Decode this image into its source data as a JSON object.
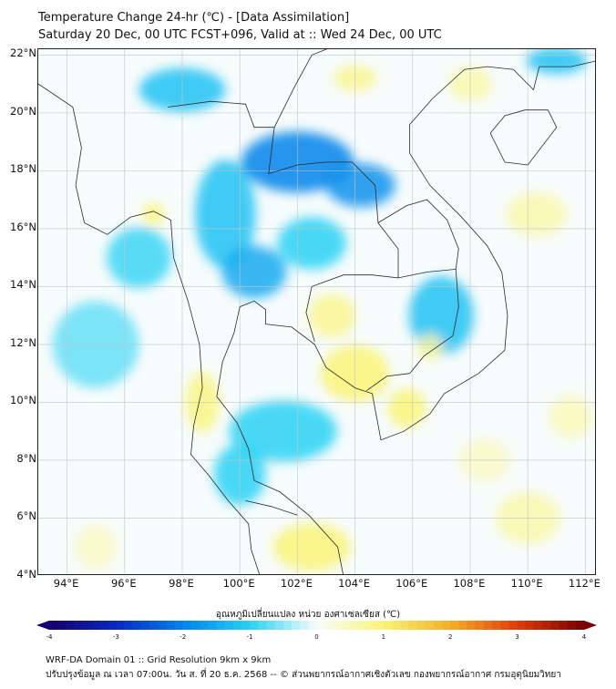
{
  "title": {
    "line1": "Temperature Change 24-hr (℃) - [Data Assimilation]",
    "line2": "Saturday 20 Dec, 00 UTC FCST+096, Valid at :: Wed 24 Dec, 00 UTC"
  },
  "map": {
    "lat_range": [
      4,
      22.2
    ],
    "lon_range": [
      93,
      112.4
    ],
    "lat_ticks": [
      "22°N",
      "20°N",
      "18°N",
      "16°N",
      "14°N",
      "12°N",
      "10°N",
      "8°N",
      "6°N",
      "4°N"
    ],
    "lat_values": [
      22,
      20,
      18,
      16,
      14,
      12,
      10,
      8,
      6,
      4
    ],
    "lon_ticks": [
      "94°E",
      "96°E",
      "98°E",
      "100°E",
      "102°E",
      "104°E",
      "106°E",
      "108°E",
      "110°E",
      "112°E"
    ],
    "lon_values": [
      94,
      96,
      98,
      100,
      102,
      104,
      106,
      108,
      110,
      112
    ],
    "anomalies": [
      {
        "lon": 102.0,
        "lat": 18.3,
        "value": -2.0,
        "sx": 2.6,
        "sy": 1.4
      },
      {
        "lon": 104.2,
        "lat": 17.5,
        "value": -1.8,
        "sx": 1.6,
        "sy": 1.0
      },
      {
        "lon": 99.5,
        "lat": 16.5,
        "value": -1.2,
        "sx": 1.4,
        "sy": 2.5
      },
      {
        "lon": 100.5,
        "lat": 14.5,
        "value": -1.5,
        "sx": 1.5,
        "sy": 1.2
      },
      {
        "lon": 102.5,
        "lat": 15.5,
        "value": -1.0,
        "sx": 1.6,
        "sy": 1.2
      },
      {
        "lon": 98.0,
        "lat": 20.8,
        "value": -1.2,
        "sx": 2.0,
        "sy": 1.0
      },
      {
        "lon": 107.0,
        "lat": 13.0,
        "value": -1.2,
        "sx": 1.5,
        "sy": 1.8
      },
      {
        "lon": 101.5,
        "lat": 9.0,
        "value": -1.0,
        "sx": 2.5,
        "sy": 1.4
      },
      {
        "lon": 100.0,
        "lat": 7.5,
        "value": -1.0,
        "sx": 1.2,
        "sy": 1.4
      },
      {
        "lon": 95.0,
        "lat": 12.0,
        "value": -0.7,
        "sx": 2.0,
        "sy": 2.0
      },
      {
        "lon": 96.5,
        "lat": 15.0,
        "value": -0.9,
        "sx": 1.5,
        "sy": 1.4
      },
      {
        "lon": 111.0,
        "lat": 21.8,
        "value": -1.2,
        "sx": 1.4,
        "sy": 0.6
      },
      {
        "lon": 104.0,
        "lat": 11.0,
        "value": 1.0,
        "sx": 1.6,
        "sy": 1.3
      },
      {
        "lon": 105.8,
        "lat": 9.8,
        "value": 1.0,
        "sx": 0.9,
        "sy": 0.9
      },
      {
        "lon": 103.2,
        "lat": 13.0,
        "value": 0.8,
        "sx": 1.1,
        "sy": 1.0
      },
      {
        "lon": 106.6,
        "lat": 11.9,
        "value": 0.7,
        "sx": 0.6,
        "sy": 0.6
      },
      {
        "lon": 102.5,
        "lat": 5.0,
        "value": 1.0,
        "sx": 1.8,
        "sy": 1.1
      },
      {
        "lon": 98.7,
        "lat": 10.0,
        "value": 0.9,
        "sx": 0.8,
        "sy": 1.4
      },
      {
        "lon": 97.0,
        "lat": 16.5,
        "value": 1.0,
        "sx": 0.5,
        "sy": 0.5
      },
      {
        "lon": 104.0,
        "lat": 21.2,
        "value": 0.8,
        "sx": 1.0,
        "sy": 0.6
      },
      {
        "lon": 108.0,
        "lat": 21.0,
        "value": 0.6,
        "sx": 1.0,
        "sy": 0.8
      },
      {
        "lon": 110.3,
        "lat": 16.5,
        "value": 0.6,
        "sx": 1.4,
        "sy": 1.0
      },
      {
        "lon": 110.0,
        "lat": 6.0,
        "value": 0.6,
        "sx": 1.5,
        "sy": 1.2
      },
      {
        "lon": 111.5,
        "lat": 9.5,
        "value": 0.5,
        "sx": 1.0,
        "sy": 1.0
      },
      {
        "lon": 108.5,
        "lat": 8.0,
        "value": 0.4,
        "sx": 1.2,
        "sy": 1.0
      },
      {
        "lon": 95.0,
        "lat": 5.0,
        "value": 0.4,
        "sx": 1.0,
        "sy": 1.0
      }
    ]
  },
  "colorbar": {
    "title": "อุณหภูมิเปลี่ยนแปลง หน่วย องศาเซลเซียส (℃)",
    "min": -4,
    "max": 4,
    "ticks": [
      "-4",
      "-3",
      "-2",
      "-1",
      "0",
      "1",
      "2",
      "3",
      "4"
    ],
    "tick_values": [
      -4,
      -3,
      -2,
      -1,
      0,
      1,
      2,
      3,
      4
    ]
  },
  "footer": {
    "line1": "WRF-DA Domain 01 :: Grid Resolution 9km x 9km",
    "line2": "ปรับปรุงข้อมูล ณ เวลา 07:00น. วัน ส. ที่ 20 ธ.ค. 2568 -- © ส่วนพยากรณ์อากาศเชิงตัวเลข กองพยากรณ์อากาศ กรมอุตุนิยมวิทยา"
  }
}
